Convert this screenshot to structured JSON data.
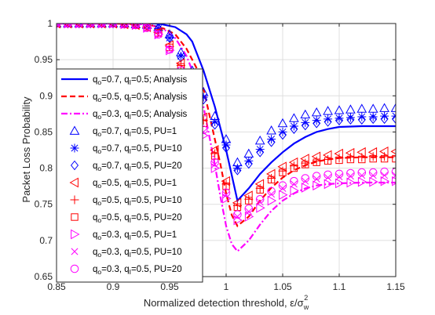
{
  "chart_data": {
    "type": "line",
    "xlabel": "Normalized detection threshold, ε/σ",
    "xlabel_sub": "w",
    "xlabel_sup": "2",
    "ylabel": "Packet Loss Probability",
    "xlim": [
      0.85,
      1.15
    ],
    "ylim": [
      0.65,
      1.0
    ],
    "xticks": [
      "0.85",
      "0.9",
      "0.95",
      "1",
      "1.05",
      "1.1",
      "1.15"
    ],
    "yticks": [
      "0.65",
      "0.7",
      "0.75",
      "0.8",
      "0.85",
      "0.9",
      "0.95",
      "1"
    ],
    "grid": true,
    "legend_position": "left",
    "legend": [
      {
        "pre": "q",
        "s1": "o",
        "mid": "=0.7, q",
        "s2": "I",
        "post": "=0.5; Analysis",
        "marker": "solid",
        "color": "#0000ff"
      },
      {
        "pre": "q",
        "s1": "o",
        "mid": "=0.5, q",
        "s2": "I",
        "post": "=0.5; Analysis",
        "marker": "dash",
        "color": "#ff0000"
      },
      {
        "pre": "q",
        "s1": "o",
        "mid": "=0.3, q",
        "s2": "I",
        "post": "=0.5; Analysis",
        "marker": "dashdot",
        "color": "#ff00ff"
      },
      {
        "pre": "q",
        "s1": "o",
        "mid": "=0.7, q",
        "s2": "I",
        "post": "=0.5, PU=1",
        "marker": "triangle-up",
        "color": "#0000ff"
      },
      {
        "pre": "q",
        "s1": "o",
        "mid": "=0.7, q",
        "s2": "I",
        "post": "=0.5, PU=10",
        "marker": "asterisk",
        "color": "#0000ff"
      },
      {
        "pre": "q",
        "s1": "o",
        "mid": "=0.7, q",
        "s2": "I",
        "post": "=0.5, PU=20",
        "marker": "diamond",
        "color": "#0000ff"
      },
      {
        "pre": "q",
        "s1": "o",
        "mid": "=0.5, q",
        "s2": "I",
        "post": "=0.5, PU=1",
        "marker": "triangle-left",
        "color": "#ff0000"
      },
      {
        "pre": "q",
        "s1": "o",
        "mid": "=0.5, q",
        "s2": "I",
        "post": "=0.5, PU=10",
        "marker": "plus",
        "color": "#ff0000"
      },
      {
        "pre": "q",
        "s1": "o",
        "mid": "=0.5, q",
        "s2": "I",
        "post": "=0.5, PU=20",
        "marker": "square",
        "color": "#ff0000"
      },
      {
        "pre": "q",
        "s1": "o",
        "mid": "=0.3, q",
        "s2": "I",
        "post": "=0.5, PU=1",
        "marker": "triangle-right",
        "color": "#ff00ff"
      },
      {
        "pre": "q",
        "s1": "o",
        "mid": "=0.3, q",
        "s2": "I",
        "post": "=0.5, PU=10",
        "marker": "cross",
        "color": "#ff00ff"
      },
      {
        "pre": "q",
        "s1": "o",
        "mid": "=0.3, q",
        "s2": "I",
        "post": "=0.5, PU=20",
        "marker": "circle",
        "color": "#ff00ff"
      }
    ],
    "lines": [
      {
        "color": "#0000ff",
        "style": "solid",
        "x": [
          0.85,
          0.9,
          0.94,
          0.955,
          0.965,
          0.97,
          0.975,
          0.98,
          0.985,
          0.99,
          0.995,
          1.0,
          1.005,
          1.01,
          1.02,
          1.03,
          1.04,
          1.05,
          1.06,
          1.07,
          1.08,
          1.09,
          1.1,
          1.12,
          1.15
        ],
        "y": [
          1.0,
          1.0,
          1.0,
          0.995,
          0.985,
          0.975,
          0.955,
          0.935,
          0.91,
          0.885,
          0.855,
          0.825,
          0.79,
          0.755,
          0.772,
          0.792,
          0.808,
          0.822,
          0.834,
          0.843,
          0.85,
          0.854,
          0.857,
          0.858,
          0.858
        ]
      },
      {
        "color": "#ff0000",
        "style": "dash",
        "x": [
          0.85,
          0.9,
          0.93,
          0.945,
          0.955,
          0.965,
          0.975,
          0.98,
          0.985,
          0.99,
          0.995,
          1.0,
          1.005,
          1.01,
          1.02,
          1.03,
          1.04,
          1.05,
          1.06,
          1.07,
          1.08,
          1.09,
          1.1,
          1.12,
          1.15
        ],
        "y": [
          1.0,
          1.0,
          0.999,
          0.993,
          0.985,
          0.965,
          0.935,
          0.91,
          0.875,
          0.84,
          0.805,
          0.765,
          0.735,
          0.72,
          0.733,
          0.755,
          0.773,
          0.787,
          0.797,
          0.804,
          0.809,
          0.812,
          0.814,
          0.815,
          0.815
        ]
      },
      {
        "color": "#ff00ff",
        "style": "dashdot",
        "x": [
          0.85,
          0.9,
          0.93,
          0.945,
          0.955,
          0.965,
          0.975,
          0.98,
          0.985,
          0.99,
          0.995,
          1.0,
          1.005,
          1.01,
          1.02,
          1.03,
          1.04,
          1.05,
          1.06,
          1.07,
          1.08,
          1.09,
          1.1,
          1.12,
          1.15
        ],
        "y": [
          1.0,
          1.0,
          0.999,
          0.992,
          0.98,
          0.955,
          0.915,
          0.885,
          0.845,
          0.805,
          0.76,
          0.72,
          0.695,
          0.685,
          0.7,
          0.722,
          0.741,
          0.755,
          0.765,
          0.772,
          0.776,
          0.778,
          0.779,
          0.78,
          0.78
        ]
      }
    ],
    "points": [
      {
        "color": "#0000ff",
        "marker": "triangle-up",
        "x": [
          0.85,
          0.86,
          0.87,
          0.88,
          0.89,
          0.9,
          0.91,
          0.92,
          0.93,
          0.94,
          0.95,
          0.96,
          0.97,
          0.98,
          0.99,
          1.0,
          1.01,
          1.02,
          1.03,
          1.04,
          1.05,
          1.06,
          1.07,
          1.08,
          1.09,
          1.1,
          1.11,
          1.12,
          1.13,
          1.14,
          1.15
        ],
        "y": [
          1.0,
          1.0,
          1.0,
          1.0,
          1.0,
          1.0,
          1.0,
          0.999,
          0.998,
          0.995,
          0.985,
          0.96,
          0.935,
          0.905,
          0.872,
          0.84,
          0.808,
          0.82,
          0.838,
          0.852,
          0.862,
          0.869,
          0.874,
          0.877,
          0.879,
          0.88,
          0.881,
          0.882,
          0.882,
          0.883,
          0.883
        ]
      },
      {
        "color": "#0000ff",
        "marker": "asterisk",
        "x": [
          0.85,
          0.86,
          0.87,
          0.88,
          0.89,
          0.9,
          0.91,
          0.92,
          0.93,
          0.94,
          0.95,
          0.96,
          0.97,
          0.98,
          0.99,
          1.0,
          1.01,
          1.02,
          1.03,
          1.04,
          1.05,
          1.06,
          1.07,
          1.08,
          1.09,
          1.1,
          1.11,
          1.12,
          1.13,
          1.14,
          1.15
        ],
        "y": [
          1.0,
          1.0,
          1.0,
          1.0,
          1.0,
          1.0,
          1.0,
          0.999,
          0.997,
          0.993,
          0.98,
          0.955,
          0.93,
          0.898,
          0.864,
          0.832,
          0.8,
          0.81,
          0.826,
          0.84,
          0.85,
          0.858,
          0.863,
          0.866,
          0.868,
          0.869,
          0.87,
          0.871,
          0.871,
          0.872,
          0.872
        ]
      },
      {
        "color": "#0000ff",
        "marker": "diamond",
        "x": [
          0.85,
          0.86,
          0.87,
          0.88,
          0.89,
          0.9,
          0.91,
          0.92,
          0.93,
          0.94,
          0.95,
          0.96,
          0.97,
          0.98,
          0.99,
          1.0,
          1.01,
          1.02,
          1.03,
          1.04,
          1.05,
          1.06,
          1.07,
          1.08,
          1.09,
          1.1,
          1.11,
          1.12,
          1.13,
          1.14,
          1.15
        ],
        "y": [
          1.0,
          1.0,
          1.0,
          1.0,
          1.0,
          1.0,
          1.0,
          0.999,
          0.997,
          0.993,
          0.98,
          0.953,
          0.928,
          0.895,
          0.86,
          0.828,
          0.797,
          0.806,
          0.822,
          0.836,
          0.846,
          0.854,
          0.859,
          0.862,
          0.864,
          0.866,
          0.867,
          0.867,
          0.868,
          0.868,
          0.868
        ]
      },
      {
        "color": "#ff0000",
        "marker": "triangle-left",
        "x": [
          0.85,
          0.86,
          0.87,
          0.88,
          0.89,
          0.9,
          0.91,
          0.92,
          0.93,
          0.94,
          0.95,
          0.96,
          0.97,
          0.98,
          0.99,
          1.0,
          1.01,
          1.02,
          1.03,
          1.04,
          1.05,
          1.06,
          1.07,
          1.08,
          1.09,
          1.1,
          1.11,
          1.12,
          1.13,
          1.14,
          1.15
        ],
        "y": [
          1.0,
          1.0,
          1.0,
          1.0,
          1.0,
          1.0,
          0.999,
          0.998,
          0.995,
          0.988,
          0.97,
          0.945,
          0.91,
          0.87,
          0.825,
          0.782,
          0.752,
          0.762,
          0.778,
          0.792,
          0.802,
          0.808,
          0.813,
          0.816,
          0.818,
          0.82,
          0.821,
          0.822,
          0.822,
          0.823,
          0.823
        ]
      },
      {
        "color": "#ff0000",
        "marker": "plus",
        "x": [
          0.85,
          0.86,
          0.87,
          0.88,
          0.89,
          0.9,
          0.91,
          0.92,
          0.93,
          0.94,
          0.95,
          0.96,
          0.97,
          0.98,
          0.99,
          1.0,
          1.01,
          1.02,
          1.03,
          1.04,
          1.05,
          1.06,
          1.07,
          1.08,
          1.09,
          1.1,
          1.11,
          1.12,
          1.13,
          1.14,
          1.15
        ],
        "y": [
          1.0,
          1.0,
          1.0,
          1.0,
          1.0,
          1.0,
          0.999,
          0.998,
          0.995,
          0.987,
          0.968,
          0.942,
          0.906,
          0.866,
          0.82,
          0.778,
          0.748,
          0.757,
          0.772,
          0.786,
          0.796,
          0.803,
          0.807,
          0.81,
          0.812,
          0.814,
          0.815,
          0.815,
          0.816,
          0.816,
          0.816
        ]
      },
      {
        "color": "#ff0000",
        "marker": "square",
        "x": [
          0.85,
          0.86,
          0.87,
          0.88,
          0.89,
          0.9,
          0.91,
          0.92,
          0.93,
          0.94,
          0.95,
          0.96,
          0.97,
          0.98,
          0.99,
          1.0,
          1.01,
          1.02,
          1.03,
          1.04,
          1.05,
          1.06,
          1.07,
          1.08,
          1.09,
          1.1,
          1.11,
          1.12,
          1.13,
          1.14,
          1.15
        ],
        "y": [
          1.0,
          1.0,
          1.0,
          1.0,
          1.0,
          1.0,
          0.999,
          0.998,
          0.995,
          0.987,
          0.967,
          0.94,
          0.903,
          0.862,
          0.817,
          0.775,
          0.746,
          0.755,
          0.77,
          0.784,
          0.794,
          0.8,
          0.805,
          0.808,
          0.81,
          0.811,
          0.812,
          0.812,
          0.813,
          0.813,
          0.813
        ]
      },
      {
        "color": "#ff00ff",
        "marker": "triangle-right",
        "x": [
          0.85,
          0.86,
          0.87,
          0.88,
          0.89,
          0.9,
          0.91,
          0.92,
          0.93,
          0.94,
          0.95,
          0.96,
          0.97,
          0.98,
          0.99,
          1.0,
          1.01,
          1.02,
          1.03,
          1.04,
          1.05,
          1.06,
          1.07,
          1.08,
          1.09,
          1.1,
          1.11,
          1.12,
          1.13,
          1.14,
          1.15
        ],
        "y": [
          1.0,
          1.0,
          1.0,
          1.0,
          1.0,
          1.0,
          0.999,
          0.998,
          0.994,
          0.985,
          0.963,
          0.932,
          0.892,
          0.845,
          0.8,
          0.758,
          0.728,
          0.733,
          0.745,
          0.755,
          0.763,
          0.769,
          0.773,
          0.776,
          0.778,
          0.779,
          0.78,
          0.781,
          0.781,
          0.782,
          0.782
        ]
      },
      {
        "color": "#ff00ff",
        "marker": "cross",
        "x": [
          0.85,
          0.86,
          0.87,
          0.88,
          0.89,
          0.9,
          0.91,
          0.92,
          0.93,
          0.94,
          0.95,
          0.96,
          0.97,
          0.98,
          0.99,
          1.0,
          1.01,
          1.02,
          1.03,
          1.04,
          1.05,
          1.06,
          1.07,
          1.08,
          1.09,
          1.1,
          1.11,
          1.12,
          1.13,
          1.14,
          1.15
        ],
        "y": [
          1.0,
          1.0,
          1.0,
          1.0,
          1.0,
          1.0,
          0.999,
          0.998,
          0.994,
          0.985,
          0.964,
          0.934,
          0.895,
          0.85,
          0.805,
          0.763,
          0.733,
          0.74,
          0.753,
          0.764,
          0.772,
          0.778,
          0.782,
          0.785,
          0.787,
          0.788,
          0.789,
          0.79,
          0.79,
          0.79,
          0.79
        ]
      },
      {
        "color": "#ff00ff",
        "marker": "circle",
        "x": [
          0.85,
          0.86,
          0.87,
          0.88,
          0.89,
          0.9,
          0.91,
          0.92,
          0.93,
          0.94,
          0.95,
          0.96,
          0.97,
          0.98,
          0.99,
          1.0,
          1.01,
          1.02,
          1.03,
          1.04,
          1.05,
          1.06,
          1.07,
          1.08,
          1.09,
          1.1,
          1.11,
          1.12,
          1.13,
          1.14,
          1.15
        ],
        "y": [
          1.0,
          1.0,
          1.0,
          1.0,
          1.0,
          1.0,
          0.999,
          0.998,
          0.994,
          0.985,
          0.964,
          0.935,
          0.897,
          0.853,
          0.808,
          0.766,
          0.736,
          0.744,
          0.757,
          0.768,
          0.776,
          0.782,
          0.786,
          0.789,
          0.791,
          0.792,
          0.793,
          0.794,
          0.794,
          0.795,
          0.795
        ]
      }
    ]
  }
}
